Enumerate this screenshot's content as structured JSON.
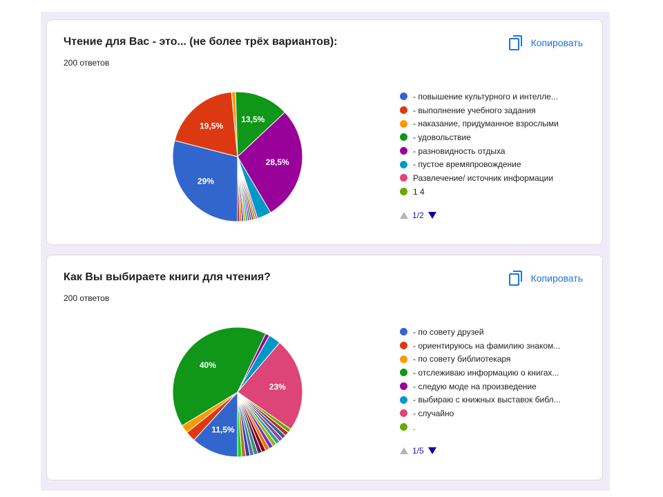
{
  "copy_label": "Копировать",
  "colors": {
    "accent": "#1a73e8",
    "frame": "#f0ebf8",
    "pager_active": "#0000aa",
    "pager_disabled": "#b5b5b5"
  },
  "cards": [
    {
      "title": "Чтение для Вас - это... (не более трёх вариантов):",
      "responses": "200 ответов",
      "pager": "1/2",
      "legend": [
        {
          "label": "- повышение культурного и интелле...",
          "color": "#3366cc"
        },
        {
          "label": "- выполнение учебного задания",
          "color": "#dc3912"
        },
        {
          "label": "- наказание, придуманное взрослыми",
          "color": "#ff9900"
        },
        {
          "label": "- удовольствие",
          "color": "#109618"
        },
        {
          "label": "- разновидность отдыха",
          "color": "#990099"
        },
        {
          "label": "- пустое времяпровождение",
          "color": "#0099c6"
        },
        {
          "label": "Развлечение/ источник информации",
          "color": "#dd4477"
        },
        {
          "label": "1 4",
          "color": "#66aa00"
        }
      ]
    },
    {
      "title": "Как Вы выбираете книги для чтения?",
      "responses": "200 ответов",
      "pager": "1/5",
      "legend": [
        {
          "label": "- по совету друзей",
          "color": "#3366cc"
        },
        {
          "label": "- ориентируюсь на фамилию знаком...",
          "color": "#dc3912"
        },
        {
          "label": "- по совету библиотекаря",
          "color": "#ff9900"
        },
        {
          "label": "- отслеживаю информацию о книгах...",
          "color": "#109618"
        },
        {
          "label": "- следую моде на произведение",
          "color": "#990099"
        },
        {
          "label": "- выбираю с книжных выставок библ...",
          "color": "#0099c6"
        },
        {
          "label": "- случайно",
          "color": "#dd4477"
        },
        {
          "label": ".",
          "color": "#66aa00"
        }
      ]
    }
  ],
  "chart_data": [
    {
      "type": "pie",
      "title": "Чтение для Вас - это... (не более трёх вариантов):",
      "start_deg": 90,
      "slices": [
        {
          "label": "- повышение культурного и интелле...",
          "value": 29,
          "color": "#3366cc",
          "text": "29%"
        },
        {
          "label": "- выполнение учебного задания",
          "value": 19.5,
          "color": "#dc3912",
          "text": "19,5%"
        },
        {
          "label": "- наказание, придуманное взрослыми",
          "value": 1,
          "color": "#ff9900",
          "text": ""
        },
        {
          "label": "- удовольствие",
          "value": 13.5,
          "color": "#109618",
          "text": "13,5%"
        },
        {
          "label": "- разновидность отдыха",
          "value": 28.5,
          "color": "#990099",
          "text": "28,5%"
        },
        {
          "label": "- пустое времяпровождение",
          "value": 3.5,
          "color": "#0099c6",
          "text": ""
        },
        {
          "label": "Развлечение/ источник информации",
          "value": 0.5,
          "color": "#dd4477",
          "text": ""
        },
        {
          "label": "1 4",
          "value": 0.5,
          "color": "#66aa00",
          "text": ""
        },
        {
          "label": "",
          "value": 0.5,
          "color": "#b82e2e",
          "text": ""
        },
        {
          "label": "",
          "value": 0.5,
          "color": "#316395",
          "text": ""
        },
        {
          "label": "",
          "value": 0.5,
          "color": "#994499",
          "text": ""
        },
        {
          "label": "",
          "value": 0.5,
          "color": "#22aa99",
          "text": ""
        },
        {
          "label": "",
          "value": 0.5,
          "color": "#aaaa11",
          "text": ""
        },
        {
          "label": "",
          "value": 0.5,
          "color": "#6633cc",
          "text": ""
        },
        {
          "label": "",
          "value": 0.5,
          "color": "#e67300",
          "text": ""
        },
        {
          "label": "",
          "value": 0.5,
          "color": "#8b0707",
          "text": ""
        }
      ]
    },
    {
      "type": "pie",
      "title": "Как Вы выбираете книги для чтения?",
      "start_deg": 90,
      "slices": [
        {
          "label": "- по совету друзей",
          "value": 11.5,
          "color": "#3366cc",
          "text": "11,5%"
        },
        {
          "label": "- ориентируюсь на фамилию знаком...",
          "value": 2.5,
          "color": "#dc3912",
          "text": ""
        },
        {
          "label": "- по совету библиотекаря",
          "value": 2,
          "color": "#ff9900",
          "text": ""
        },
        {
          "label": "- отслеживаю информацию о книгах...",
          "value": 40,
          "color": "#109618",
          "text": "40%"
        },
        {
          "label": "- следую моде на произведение",
          "value": 1,
          "color": "#990099",
          "text": ""
        },
        {
          "label": "- выбираю с книжных выставок библ...",
          "value": 3,
          "color": "#0099c6",
          "text": ""
        },
        {
          "label": "- случайно",
          "value": 23,
          "color": "#dd4477",
          "text": "23%"
        },
        {
          "label": ".",
          "value": 1,
          "color": "#66aa00",
          "text": ""
        },
        {
          "label": "",
          "value": 1,
          "color": "#b82e2e",
          "text": ""
        },
        {
          "label": "",
          "value": 1,
          "color": "#316395",
          "text": ""
        },
        {
          "label": "",
          "value": 1,
          "color": "#994499",
          "text": ""
        },
        {
          "label": "",
          "value": 1,
          "color": "#22aa99",
          "text": ""
        },
        {
          "label": "",
          "value": 1,
          "color": "#aaaa11",
          "text": ""
        },
        {
          "label": "",
          "value": 1,
          "color": "#6633cc",
          "text": ""
        },
        {
          "label": "",
          "value": 1,
          "color": "#e67300",
          "text": ""
        },
        {
          "label": "",
          "value": 1,
          "color": "#8b0707",
          "text": ""
        },
        {
          "label": "",
          "value": 1,
          "color": "#651067",
          "text": ""
        },
        {
          "label": "",
          "value": 1,
          "color": "#329262",
          "text": ""
        },
        {
          "label": "",
          "value": 1,
          "color": "#5574a6",
          "text": ""
        },
        {
          "label": "",
          "value": 1,
          "color": "#3b3eac",
          "text": ""
        },
        {
          "label": "",
          "value": 1,
          "color": "#b77322",
          "text": ""
        },
        {
          "label": "",
          "value": 1,
          "color": "#16d620",
          "text": ""
        }
      ]
    }
  ]
}
